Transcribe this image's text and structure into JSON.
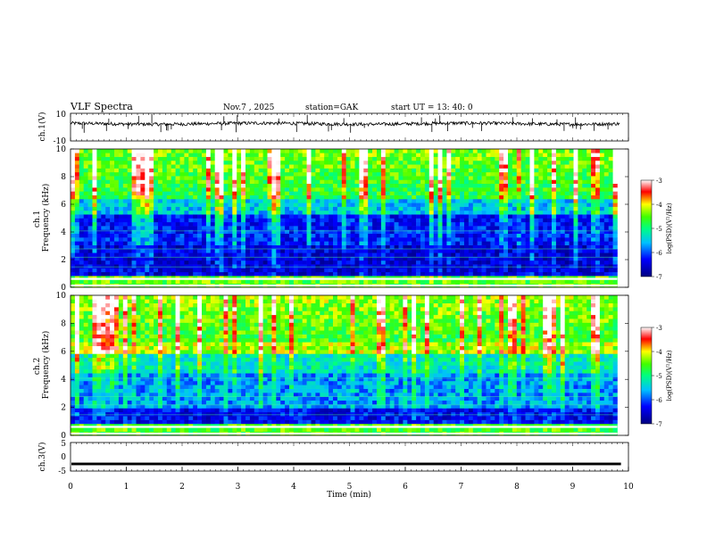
{
  "header": {
    "title": "VLF  Spectra",
    "date": "Nov.7   , 2025",
    "station": "station=GAK",
    "start_ut": "start  UT  =    13: 40: 0"
  },
  "chart_data": [
    {
      "type": "line",
      "name": "ch1-waveform",
      "ylabel": "ch.1(V)",
      "ylim": [
        -10,
        10
      ],
      "yticks": [
        "10",
        "-10"
      ],
      "xlim": [
        0,
        10
      ],
      "baseline": 2.5,
      "noise": 1.2
    },
    {
      "type": "heatmap",
      "name": "ch1-spectrogram",
      "ylabel": "ch.1\nFrequency  (kHz)",
      "ylim": [
        0,
        10
      ],
      "yticks": [
        "0",
        "2",
        "4",
        "6",
        "8",
        "10"
      ],
      "xlim": [
        0,
        9.8
      ],
      "zlim": [
        -7,
        -3
      ],
      "colorbar": {
        "label": "log(PSD)(V²/Hz)",
        "ticks": [
          "-3",
          "-4",
          "-5",
          "-6",
          "-7"
        ]
      }
    },
    {
      "type": "heatmap",
      "name": "ch2-spectrogram",
      "ylabel": "ch.2\nFrequency  (kHz)",
      "ylim": [
        0,
        10
      ],
      "yticks": [
        "0",
        "2",
        "4",
        "6",
        "8",
        "10"
      ],
      "xlim": [
        0,
        9.8
      ],
      "zlim": [
        -7,
        -3
      ],
      "colorbar": {
        "label": "log(PSD)(V²/Hz)",
        "ticks": [
          "-3",
          "-4",
          "-5",
          "-6",
          "-7"
        ]
      }
    },
    {
      "type": "line",
      "name": "ch3-waveform",
      "ylabel": "ch.3(V)",
      "ylim": [
        -5,
        5
      ],
      "yticks": [
        "5",
        "0",
        "-5"
      ],
      "xlim": [
        0,
        10
      ],
      "baseline": -2.5,
      "noise": 0.15
    }
  ],
  "x_axis": {
    "label": "Time  (min)",
    "ticks": [
      "0",
      "1",
      "2",
      "3",
      "4",
      "5",
      "6",
      "7",
      "8",
      "9",
      "10"
    ],
    "range": [
      0,
      10
    ]
  },
  "colors": {
    "low": "#00008b",
    "mid": "#00ff00",
    "high": "#ff0000",
    "top": "#ffffff"
  }
}
